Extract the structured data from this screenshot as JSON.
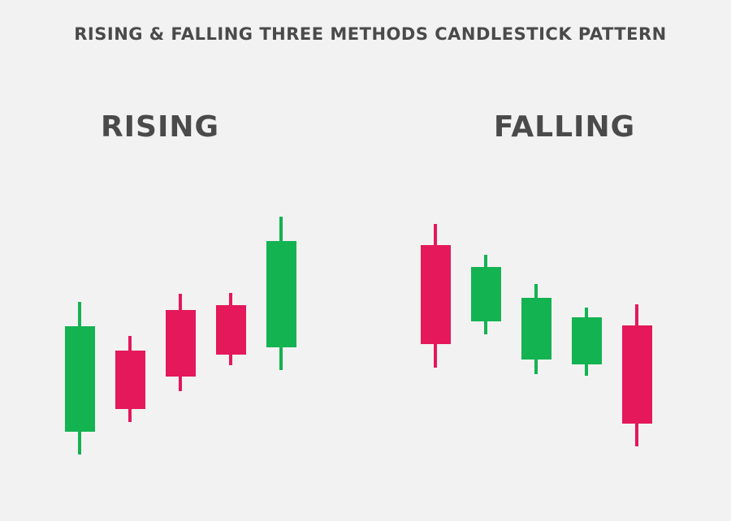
{
  "header": {
    "title": "RISING & FALLING THREE METHODS CANDLESTICK PATTERN"
  },
  "panels": [
    {
      "label": "RISING"
    },
    {
      "label": "FALLING"
    }
  ]
}
